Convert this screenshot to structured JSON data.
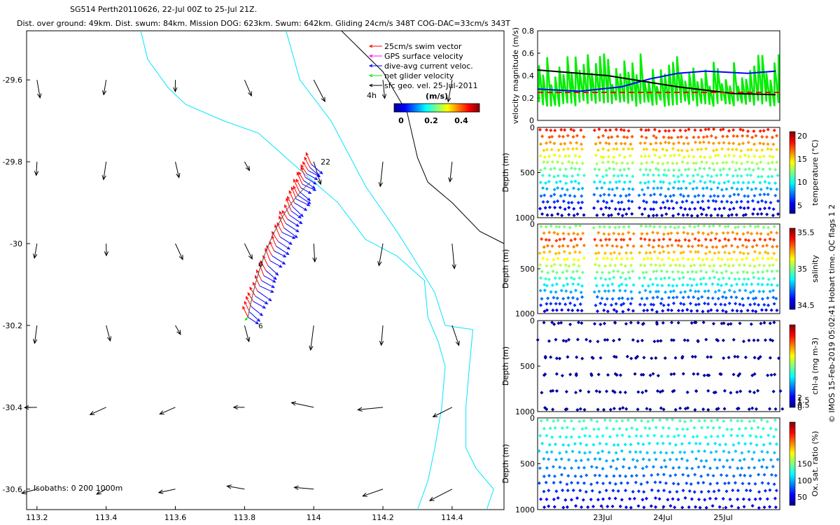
{
  "header": {
    "title": "SG514 Perth20110626, 22-Jul 00Z to 25-Jul 21Z.",
    "subtitle": "Dist. over ground: 49km. Dist. swum: 84km. Mission DOG: 623km. Swum: 642km. Gliding 24cm/s 348T COG-DAC=33cm/s 343T"
  },
  "colors": {
    "swim": "#ff0000",
    "gps": "#ff00ff",
    "dac": "#0000ff",
    "net": "#00ee00",
    "geo": "#000000",
    "isobath": "#00e5ff"
  },
  "chart_data": [
    {
      "type": "map",
      "title": "SG514 Perth20110626, 22-Jul 00Z to 25-Jul 21Z.",
      "x_ticks": [
        "113.2",
        "113.4",
        "113.6",
        "113.8",
        "114",
        "114.2",
        "114.4"
      ],
      "y_ticks": [
        "-29.6",
        "-29.8",
        "-30",
        "-30.2",
        "-30.4",
        "-30.6"
      ],
      "xlim": [
        113.17,
        114.55
      ],
      "ylim": [
        -30.65,
        -29.48
      ],
      "legend": [
        {
          "label": "25cm/s swim vector",
          "color": "#ff0000"
        },
        {
          "label": "GPS surface velocity",
          "color": "#ff00ff"
        },
        {
          "label": "dive-avg current veloc.",
          "color": "#0000ff"
        },
        {
          "label": "net glider velocity",
          "color": "#00ee00"
        },
        {
          "label": "sfc geo. vel. 25-Jul-2011",
          "color": "#000000"
        }
      ],
      "legend_extra": "4h",
      "colorbar": {
        "label": "(m/s)",
        "ticks": [
          "0",
          "0.2",
          "0.4"
        ]
      },
      "isobaths_label": "Isobaths: 0   200   1000m",
      "track_labels": [
        "22",
        "0",
        "6"
      ]
    },
    {
      "type": "line",
      "ylabel": "velocity magnitude (m/s)",
      "ylim": [
        0,
        0.8
      ],
      "yticks": [
        "0",
        "0.2",
        "0.4",
        "0.6",
        "0.8"
      ],
      "series": []
    },
    {
      "type": "scatter",
      "ylabel": "Depth (m)",
      "yticks": [
        "0",
        "500",
        "1000"
      ],
      "colorbar_label": "temperature (°C)",
      "colorbar_ticks": [
        "5",
        "10",
        "15",
        "20"
      ]
    },
    {
      "type": "scatter",
      "ylabel": "Depth (m)",
      "yticks": [
        "0",
        "500",
        "1000"
      ],
      "colorbar_label": "salinity",
      "colorbar_ticks": [
        "34.5",
        "35",
        "35.5"
      ]
    },
    {
      "type": "scatter",
      "ylabel": "Depth (m)",
      "yticks": [
        "0",
        "500",
        "1000"
      ],
      "colorbar_label": "chl-a (mg m-3)",
      "colorbar_ticks": [
        "0",
        "0.5",
        "1",
        "1.5",
        "2"
      ]
    },
    {
      "type": "scatter",
      "ylabel": "Depth (m)",
      "yticks": [
        "0",
        "500",
        "1000"
      ],
      "colorbar_label": "Ox. sat. ratio (%)",
      "colorbar_ticks": [
        "50",
        "100",
        "150"
      ],
      "x_ticks": [
        "23Jul",
        "24Jul",
        "25Jul"
      ]
    }
  ],
  "side_note": "© IMOS 15-Feb-2019 05:02:41 Hobart time. QC flags 1  2"
}
